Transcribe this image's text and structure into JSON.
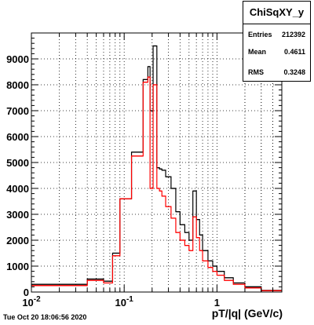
{
  "chart_data": {
    "type": "step",
    "title": "",
    "xlabel": "pT/|q| (GeV/c)",
    "ylabel": "",
    "xscale": "log",
    "xlim": [
      0.01,
      5.0
    ],
    "ylim": [
      0,
      10000
    ],
    "grid": true,
    "x_major_ticks": [
      {
        "value": 0.01,
        "label": "10",
        "sup": "-2"
      },
      {
        "value": 0.1,
        "label": "10",
        "sup": "-1"
      },
      {
        "value": 1,
        "label": "1",
        "sup": ""
      }
    ],
    "y_ticks": [
      {
        "value": 0,
        "label": "0"
      },
      {
        "value": 1000,
        "label": "1000"
      },
      {
        "value": 2000,
        "label": "2000"
      },
      {
        "value": 3000,
        "label": "3000"
      },
      {
        "value": 4000,
        "label": "4000"
      },
      {
        "value": 5000,
        "label": "5000"
      },
      {
        "value": 6000,
        "label": "6000"
      },
      {
        "value": 7000,
        "label": "7000"
      },
      {
        "value": 8000,
        "label": "8000"
      },
      {
        "value": 9000,
        "label": "9000"
      }
    ],
    "series": [
      {
        "color": "#000000",
        "edges": [
          0.01,
          0.04,
          0.06,
          0.075,
          0.09,
          0.12,
          0.16,
          0.18,
          0.19,
          0.205,
          0.225,
          0.24,
          0.255,
          0.28,
          0.32,
          0.36,
          0.4,
          0.45,
          0.5,
          0.55,
          0.6,
          0.65,
          0.7,
          0.8,
          0.9,
          1.0,
          1.2,
          1.5,
          2.0,
          3.0,
          5.0
        ],
        "values": [
          300,
          500,
          420,
          1500,
          3600,
          5400,
          8200,
          8700,
          7000,
          9500,
          4800,
          4750,
          4700,
          4450,
          4000,
          3100,
          2600,
          2300,
          2000,
          3900,
          2800,
          2200,
          1600,
          1200,
          1000,
          800,
          550,
          350,
          200,
          60
        ]
      },
      {
        "color": "#ff0000",
        "edges": [
          0.01,
          0.04,
          0.06,
          0.075,
          0.09,
          0.12,
          0.16,
          0.18,
          0.19,
          0.205,
          0.225,
          0.24,
          0.255,
          0.28,
          0.32,
          0.36,
          0.4,
          0.45,
          0.5,
          0.55,
          0.6,
          0.65,
          0.7,
          0.8,
          0.9,
          1.0,
          1.2,
          1.5,
          2.0,
          3.0,
          5.0
        ],
        "values": [
          250,
          450,
          350,
          1400,
          3600,
          5250,
          8100,
          8300,
          4000,
          8000,
          4000,
          3900,
          3700,
          3300,
          2850,
          2300,
          2000,
          1800,
          1600,
          2900,
          2100,
          1600,
          1200,
          950,
          800,
          650,
          450,
          300,
          160,
          50
        ]
      }
    ]
  },
  "stats": {
    "title": "ChiSqXY_y",
    "entries_label": "Entries",
    "entries_value": "212392",
    "mean_label": "Mean",
    "mean_value": "0.4611",
    "rms_label": "RMS",
    "rms_value": "0.3248"
  },
  "datestamp": "Tue Oct 20 18:06:56 2020",
  "colors": {
    "frame": "#000000",
    "grid": "#000000",
    "background": "#ffffff"
  }
}
